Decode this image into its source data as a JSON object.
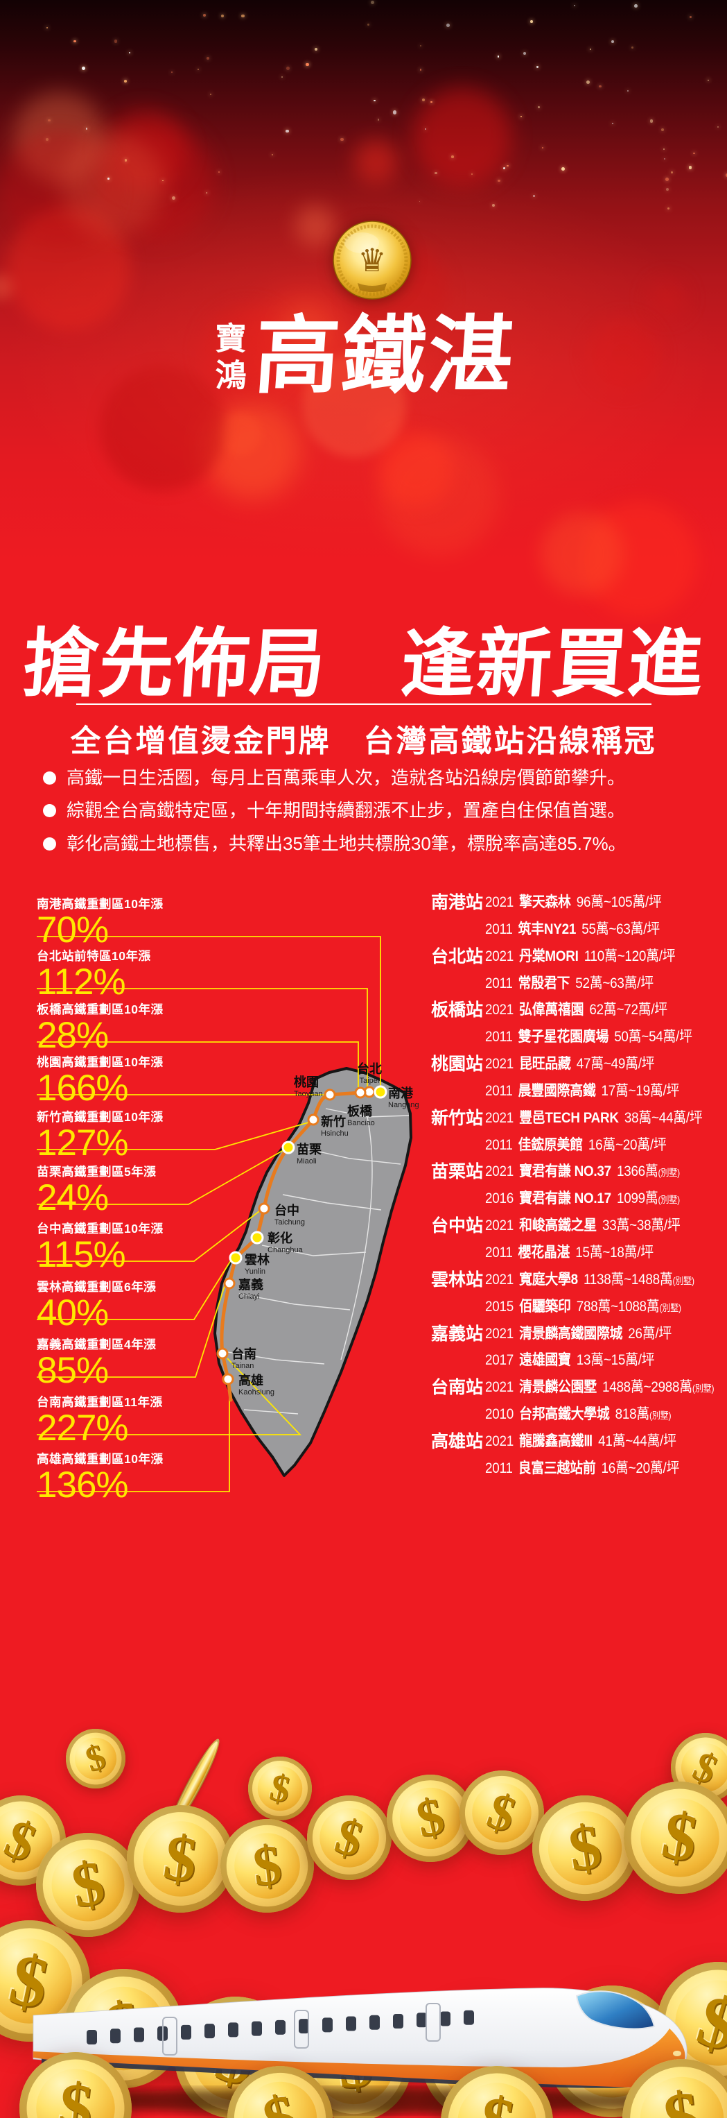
{
  "brand": {
    "name_small": "寶鴻",
    "name_large": "高鐵湛",
    "medal_glyph": "♛"
  },
  "headline": {
    "title": "搶先佈局　逢新買進",
    "subtitle": "全台增值燙金門牌　台灣高鐵站沿線稱冠"
  },
  "bullets": [
    "高鐵一日生活圈，每月上百萬乘車人次，造就各站沿線房價節節攀升。",
    "綜觀全台高鐵特定區，十年期間持續翻漲不止步，置產自住保值首選。",
    "彰化高鐵土地標售，共釋出35筆土地共標脫30筆，標脫率高達85.7%。"
  ],
  "stats": [
    {
      "label": "南港高鐵重劃區10年漲",
      "value": "70%"
    },
    {
      "label": "台北站前特區10年漲",
      "value": "112%"
    },
    {
      "label": "板橋高鐵重劃區10年漲",
      "value": "28%"
    },
    {
      "label": "桃園高鐵重劃區10年漲",
      "value": "166%"
    },
    {
      "label": "新竹高鐵重劃區10年漲",
      "value": "127%"
    },
    {
      "label": "苗栗高鐵重劃區5年漲",
      "value": "24%"
    },
    {
      "label": "台中高鐵重劃區10年漲",
      "value": "115%"
    },
    {
      "label": "雲林高鐵重劃區6年漲",
      "value": "40%"
    },
    {
      "label": "嘉義高鐵重劃區4年漲",
      "value": "85%"
    },
    {
      "label": "台南高鐵重劃區11年漲",
      "value": "227%"
    },
    {
      "label": "高雄高鐵重劃區10年漲",
      "value": "136%"
    }
  ],
  "map": {
    "stations": [
      {
        "zh": "台北",
        "en": "Taipei"
      },
      {
        "zh": "南港",
        "en": "Nangang"
      },
      {
        "zh": "板橋",
        "en": "Banciao"
      },
      {
        "zh": "桃園",
        "en": "Taoyuan"
      },
      {
        "zh": "新竹",
        "en": "Hsinchu"
      },
      {
        "zh": "苗栗",
        "en": "Miaoli"
      },
      {
        "zh": "台中",
        "en": "Taichung"
      },
      {
        "zh": "彰化",
        "en": "Changhua"
      },
      {
        "zh": "雲林",
        "en": "Yunlin"
      },
      {
        "zh": "嘉義",
        "en": "Chiayi"
      },
      {
        "zh": "台南",
        "en": "Tainan"
      },
      {
        "zh": "高雄",
        "en": "Kaohsiung"
      }
    ]
  },
  "listings": [
    {
      "station": "南港站",
      "rows": [
        {
          "year": "2021",
          "name": "擎天森林",
          "price": "96萬~105萬/坪",
          "note": ""
        },
        {
          "year": "2011",
          "name": "筑丰NY21",
          "price": "55萬~63萬/坪",
          "note": ""
        }
      ]
    },
    {
      "station": "台北站",
      "rows": [
        {
          "year": "2021",
          "name": "丹棠MORI",
          "price": "110萬~120萬/坪",
          "note": ""
        },
        {
          "year": "2011",
          "name": "常殷君下",
          "price": "52萬~63萬/坪",
          "note": ""
        }
      ]
    },
    {
      "station": "板橋站",
      "rows": [
        {
          "year": "2021",
          "name": "弘偉萬禧園",
          "price": "62萬~72萬/坪",
          "note": ""
        },
        {
          "year": "2011",
          "name": "雙子星花園廣場",
          "price": "50萬~54萬/坪",
          "note": ""
        }
      ]
    },
    {
      "station": "桃園站",
      "rows": [
        {
          "year": "2021",
          "name": "昆旺品藏",
          "price": "47萬~49萬/坪",
          "note": ""
        },
        {
          "year": "2011",
          "name": "晨豐國際高鐵",
          "price": "17萬~19萬/坪",
          "note": ""
        }
      ]
    },
    {
      "station": "新竹站",
      "rows": [
        {
          "year": "2021",
          "name": "豐邑TECH PARK",
          "price": "38萬~44萬/坪",
          "note": ""
        },
        {
          "year": "2011",
          "name": "佳鋐原美館",
          "price": "16萬~20萬/坪",
          "note": ""
        }
      ]
    },
    {
      "station": "苗栗站",
      "rows": [
        {
          "year": "2021",
          "name": "寶君有謙 NO.37",
          "price": "1366萬",
          "note": "(別墅)"
        },
        {
          "year": "2016",
          "name": "寶君有謙 NO.17",
          "price": "1099萬",
          "note": "(別墅)"
        }
      ]
    },
    {
      "station": "台中站",
      "rows": [
        {
          "year": "2021",
          "name": "和峻高鐵之星",
          "price": "33萬~38萬/坪",
          "note": ""
        },
        {
          "year": "2011",
          "name": "櫻花晶湛",
          "price": "15萬~18萬/坪",
          "note": ""
        }
      ]
    },
    {
      "station": "雲林站",
      "rows": [
        {
          "year": "2021",
          "name": "寬庭大學8",
          "price": "1138萬~1488萬",
          "note": "(別墅)"
        },
        {
          "year": "2015",
          "name": "佰驪築印",
          "price": "788萬~1088萬",
          "note": "(別墅)"
        }
      ]
    },
    {
      "station": "嘉義站",
      "rows": [
        {
          "year": "2021",
          "name": "清景麟高鐵國際城",
          "price": "26萬/坪",
          "note": ""
        },
        {
          "year": "2017",
          "name": "遠雄國寶",
          "price": "13萬~15萬/坪",
          "note": ""
        }
      ]
    },
    {
      "station": "台南站",
      "rows": [
        {
          "year": "2021",
          "name": "清景麟公園墅",
          "price": "1488萬~2988萬",
          "note": "(別墅)"
        },
        {
          "year": "2010",
          "name": "台邦高鐵大學城",
          "price": "818萬",
          "note": "(別墅)"
        }
      ]
    },
    {
      "station": "高雄站",
      "rows": [
        {
          "year": "2021",
          "name": "龍騰鑫高鐵Ⅲ",
          "price": "41萬~44萬/坪",
          "note": ""
        },
        {
          "year": "2011",
          "name": "良富三越站前",
          "price": "16萬~20萬/坪",
          "note": ""
        }
      ]
    }
  ],
  "footer": {
    "coin_symbol": "$"
  },
  "colors": {
    "background_red": "#EE1B22",
    "highlight_yellow": "#FFE800",
    "rail_orange": "#E87B1E",
    "map_gray": "#9B9B9D"
  }
}
